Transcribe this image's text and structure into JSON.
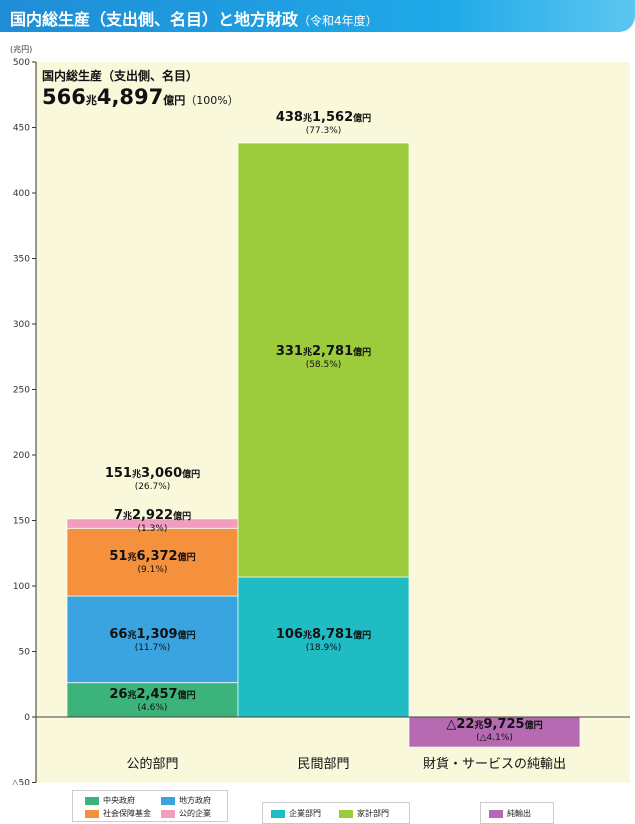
{
  "header": {
    "title": "国内総生産（支出側、名目）と地方財政",
    "subtitle": "（令和4年度）"
  },
  "colors": {
    "bg": "#faf8db",
    "central": "#3cb37a",
    "local": "#3aa4e0",
    "social": "#f5903d",
    "public_ent": "#f09dc0",
    "corporate": "#1fbcc4",
    "household": "#9ccc3c",
    "net_export": "#b56ab2"
  },
  "chart_data": {
    "type": "bar",
    "stacked": true,
    "unit_label": "(兆円)",
    "ylim": [
      -50,
      500
    ],
    "yticks": [
      {
        "v": 500,
        "label": "500"
      },
      {
        "v": 450,
        "label": "450"
      },
      {
        "v": 400,
        "label": "400"
      },
      {
        "v": 350,
        "label": "350"
      },
      {
        "v": 300,
        "label": "300"
      },
      {
        "v": 250,
        "label": "250"
      },
      {
        "v": 200,
        "label": "200"
      },
      {
        "v": 150,
        "label": "150"
      },
      {
        "v": 100,
        "label": "100"
      },
      {
        "v": 50,
        "label": "50"
      },
      {
        "v": 0,
        "label": "0"
      },
      {
        "v": -50,
        "label": "△50"
      }
    ],
    "grid": false,
    "gdp_total": {
      "title": "国内総生産（支出側、名目）",
      "big": "566",
      "cho": "兆",
      "rest": "4,897",
      "oku": "億円",
      "pct": "（100%）"
    },
    "categories": [
      "公的部門",
      "民間部門",
      "財貨・サービスの純輸出"
    ],
    "bars": [
      {
        "category": "公的部門",
        "total": {
          "value": 151.306,
          "big": "151",
          "cho": "兆",
          "rest": "3,060",
          "oku": "億円",
          "pct": "(26.7%)"
        },
        "segments": [
          {
            "name": "中央政府",
            "value": 26.2457,
            "color": "#3cb37a",
            "big": "26",
            "cho": "兆",
            "rest": "2,457",
            "oku": "億円",
            "pct": "(4.6%)"
          },
          {
            "name": "地方政府",
            "value": 66.1309,
            "color": "#3aa4e0",
            "big": "66",
            "cho": "兆",
            "rest": "1,309",
            "oku": "億円",
            "pct": "(11.7%)"
          },
          {
            "name": "社会保障基金",
            "value": 51.6372,
            "color": "#f5903d",
            "big": "51",
            "cho": "兆",
            "rest": "6,372",
            "oku": "億円",
            "pct": "(9.1%)"
          },
          {
            "name": "公的企業",
            "value": 7.2922,
            "color": "#f09dc0",
            "big": "7",
            "cho": "兆",
            "rest": "2,922",
            "oku": "億円",
            "pct": "(1.3%)"
          }
        ]
      },
      {
        "category": "民間部門",
        "total": {
          "value": 438.1562,
          "big": "438",
          "cho": "兆",
          "rest": "1,562",
          "oku": "億円",
          "pct": "(77.3%)"
        },
        "segments": [
          {
            "name": "企業部門",
            "value": 106.8781,
            "color": "#1fbcc4",
            "big": "106",
            "cho": "兆",
            "rest": "8,781",
            "oku": "億円",
            "pct": "(18.9%)"
          },
          {
            "name": "家計部門",
            "value": 331.2781,
            "color": "#9ccc3c",
            "big": "331",
            "cho": "兆",
            "rest": "2,781",
            "oku": "億円",
            "pct": "(58.5%)"
          }
        ]
      },
      {
        "category": "財貨・サービスの純輸出",
        "segments": [
          {
            "name": "純輸出",
            "value": -22.9725,
            "color": "#b56ab2",
            "big": "△22",
            "cho": "兆",
            "rest": "9,725",
            "oku": "億円",
            "pct": "(△4.1%)"
          }
        ]
      }
    ],
    "legend": [
      {
        "name": "中央政府",
        "color": "#3cb37a"
      },
      {
        "name": "地方政府",
        "color": "#3aa4e0"
      },
      {
        "name": "社会保障基金",
        "color": "#f5903d"
      },
      {
        "name": "公的企業",
        "color": "#f09dc0"
      },
      {
        "name": "企業部門",
        "color": "#1fbcc4"
      },
      {
        "name": "家計部門",
        "color": "#9ccc3c"
      },
      {
        "name": "純輸出",
        "color": "#b56ab2"
      }
    ]
  }
}
